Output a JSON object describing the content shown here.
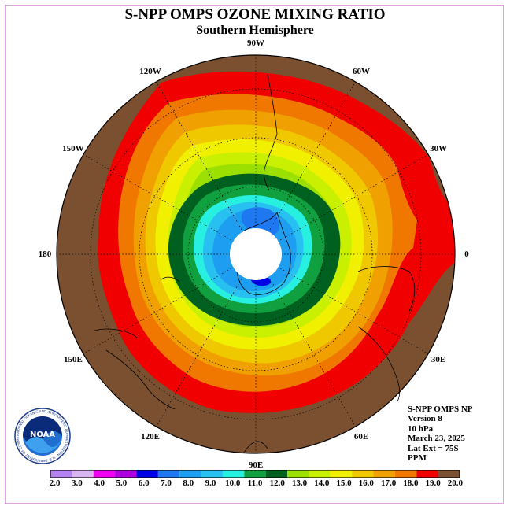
{
  "title": "S-NPP OMPS OZONE MIXING RATIO",
  "subtitle": "Southern Hemisphere",
  "longitude_labels": [
    {
      "text": "90W",
      "lon": -90
    },
    {
      "text": "60W",
      "lon": -60
    },
    {
      "text": "30W",
      "lon": -30
    },
    {
      "text": "0",
      "lon": 0
    },
    {
      "text": "30E",
      "lon": 30
    },
    {
      "text": "60E",
      "lon": 60
    },
    {
      "text": "90E",
      "lon": 90
    },
    {
      "text": "120E",
      "lon": 120
    },
    {
      "text": "150E",
      "lon": 150
    },
    {
      "text": "180",
      "lon": 180
    },
    {
      "text": "150W",
      "lon": -150
    },
    {
      "text": "120W",
      "lon": -120
    }
  ],
  "info": {
    "line1": "S-NPP OMPS NP",
    "line2": "Version 8",
    "line3": "10 hPa",
    "line4": "March 23, 2025",
    "line5": "Lat Ext = 75S",
    "line6": "PPM"
  },
  "logo": {
    "text": "NOAA",
    "ring_text": "NATIONAL OCEANIC AND ATMOSPHERIC ADMINISTRATION · U.S. DEPARTMENT OF COMMERCE"
  },
  "colorbar": {
    "labels": [
      "2.0",
      "3.0",
      "4.0",
      "5.0",
      "6.0",
      "7.0",
      "8.0",
      "9.0",
      "10.0",
      "11.0",
      "12.0",
      "13.0",
      "14.0",
      "15.0",
      "16.0",
      "17.0",
      "18.0",
      "19.0",
      "20.0"
    ],
    "colors": [
      "#b482f0",
      "#d8b4f0",
      "#f000f0",
      "#b000e0",
      "#0000e8",
      "#1e78f0",
      "#1e9ef0",
      "#28c0f0",
      "#28f0e0",
      "#10a040",
      "#006020",
      "#9be000",
      "#c8f000",
      "#f0f000",
      "#f0c800",
      "#f0a000",
      "#f07800",
      "#f00000",
      "#7a5030"
    ]
  }
}
